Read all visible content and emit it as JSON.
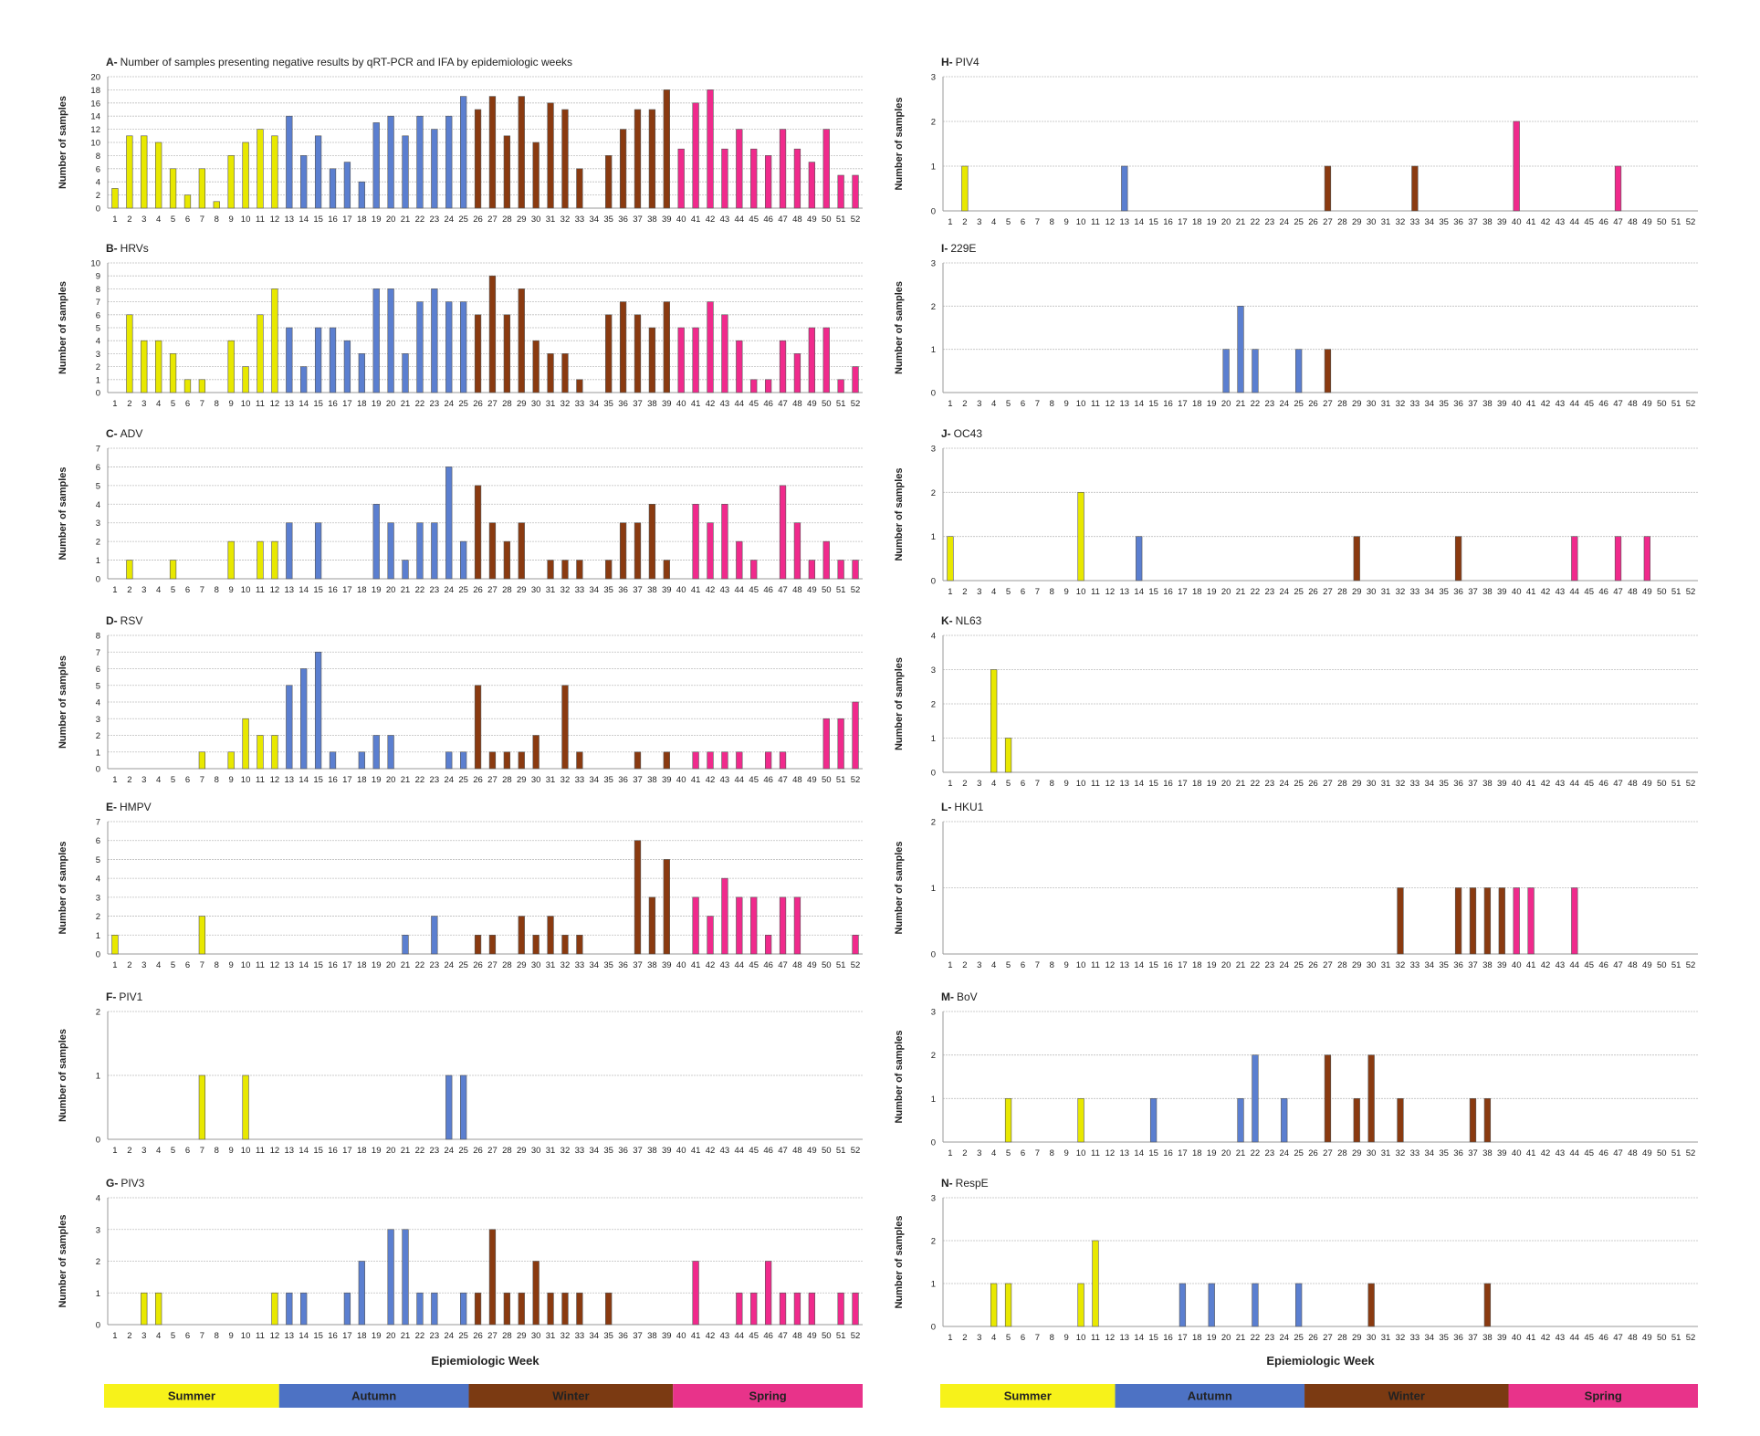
{
  "season_colors": {
    "Summer": "#f7f21a",
    "Autumn": "#4d72c4",
    "Winter": "#7b3a12",
    "Spring": "#e8338a"
  },
  "season_bar_colors": {
    "Summer": "#e8e800",
    "Autumn": "#5b7fd0",
    "Winter": "#8a3a10",
    "Spring": "#f02a8c"
  },
  "season_week_ranges": {
    "Summer": [
      1,
      12
    ],
    "Autumn": [
      13,
      25
    ],
    "Winter": [
      26,
      39
    ],
    "Spring": [
      40,
      52
    ]
  },
  "axis_weeks": {
    "default": 52,
    "N": 52
  },
  "xlabel": "Epiemiologic Week",
  "ylabel": "Number of samples",
  "legend_left": [
    "Summer",
    "Autumn",
    "Winter",
    "Spring"
  ],
  "legend_right": [
    "Summer",
    "Autumn",
    "Winter",
    "Spring"
  ],
  "chart_data": [
    {
      "id": "A",
      "letter": "A-",
      "title": "Number of samples presenting  negative results  by qRT-PCR  and IFA by epidemiologic weeks",
      "type": "bar",
      "ymax": 20,
      "ytick": 2,
      "column": "left",
      "values": {
        "1": 3,
        "2": 11,
        "3": 11,
        "4": 10,
        "5": 6,
        "6": 2,
        "7": 6,
        "8": 1,
        "9": 8,
        "10": 10,
        "11": 12,
        "12": 11,
        "13": 14,
        "14": 8,
        "15": 11,
        "16": 6,
        "17": 7,
        "18": 4,
        "19": 13,
        "20": 14,
        "21": 11,
        "22": 14,
        "23": 12,
        "24": 14,
        "25": 17,
        "26": 15,
        "27": 17,
        "28": 11,
        "29": 17,
        "30": 10,
        "31": 16,
        "32": 15,
        "33": 6,
        "35": 8,
        "36": 12,
        "37": 15,
        "38": 15,
        "39": 18,
        "40": 9,
        "41": 16,
        "42": 18,
        "43": 9,
        "44": 12,
        "45": 9,
        "46": 8,
        "47": 12,
        "48": 9,
        "49": 7,
        "50": 12,
        "51": 5,
        "52": 5
      }
    },
    {
      "id": "B",
      "letter": "B-",
      "title": "HRVs",
      "type": "bar",
      "ymax": 10,
      "ytick": 1,
      "column": "left",
      "values": {
        "2": 6,
        "3": 4,
        "4": 4,
        "5": 3,
        "6": 1,
        "7": 1,
        "9": 4,
        "10": 2,
        "11": 6,
        "12": 8,
        "13": 5,
        "14": 2,
        "15": 5,
        "16": 5,
        "17": 4,
        "18": 3,
        "19": 8,
        "20": 8,
        "21": 3,
        "22": 7,
        "23": 8,
        "24": 7,
        "25": 7,
        "26": 6,
        "27": 9,
        "28": 6,
        "29": 8,
        "30": 4,
        "31": 3,
        "32": 3,
        "33": 1,
        "35": 6,
        "36": 7,
        "37": 6,
        "38": 5,
        "39": 7,
        "40": 5,
        "41": 5,
        "42": 7,
        "43": 6,
        "44": 4,
        "45": 1,
        "46": 1,
        "47": 4,
        "48": 3,
        "49": 5,
        "50": 5,
        "51": 1,
        "52": 2
      }
    },
    {
      "id": "C",
      "letter": "C-",
      "title": "ADV",
      "type": "bar",
      "ymax": 7,
      "ytick": 1,
      "column": "left",
      "values": {
        "2": 1,
        "5": 1,
        "9": 2,
        "11": 2,
        "12": 2,
        "13": 3,
        "15": 3,
        "19": 4,
        "20": 3,
        "21": 1,
        "22": 3,
        "23": 3,
        "24": 6,
        "25": 2,
        "26": 5,
        "27": 3,
        "28": 2,
        "29": 3,
        "31": 1,
        "32": 1,
        "33": 1,
        "35": 1,
        "36": 3,
        "37": 3,
        "38": 4,
        "39": 1,
        "41": 4,
        "42": 3,
        "43": 4,
        "44": 2,
        "45": 1,
        "47": 5,
        "48": 3,
        "49": 1,
        "50": 2,
        "51": 1,
        "52": 1
      }
    },
    {
      "id": "D",
      "letter": "D-",
      "title": "RSV",
      "type": "bar",
      "ymax": 8,
      "ytick": 1,
      "column": "left",
      "values": {
        "7": 1,
        "9": 1,
        "10": 3,
        "11": 2,
        "12": 2,
        "13": 5,
        "14": 6,
        "15": 7,
        "16": 1,
        "18": 1,
        "19": 2,
        "20": 2,
        "24": 1,
        "25": 1,
        "26": 5,
        "27": 1,
        "28": 1,
        "29": 1,
        "30": 2,
        "32": 5,
        "33": 1,
        "37": 1,
        "39": 1,
        "41": 1,
        "42": 1,
        "43": 1,
        "44": 1,
        "46": 1,
        "47": 1,
        "50": 3,
        "51": 3,
        "52": 4
      }
    },
    {
      "id": "E",
      "letter": "E-",
      "title": "HMPV",
      "type": "bar",
      "ymax": 7,
      "ytick": 1,
      "column": "left",
      "values": {
        "1": 1,
        "7": 2,
        "21": 1,
        "23": 2,
        "26": 1,
        "27": 1,
        "29": 2,
        "30": 1,
        "31": 2,
        "32": 1,
        "33": 1,
        "37": 6,
        "38": 3,
        "39": 5,
        "41": 3,
        "42": 2,
        "43": 4,
        "44": 3,
        "45": 3,
        "46": 1,
        "47": 3,
        "48": 3,
        "52": 1
      }
    },
    {
      "id": "F",
      "letter": "F-",
      "title": "PIV1",
      "type": "bar",
      "ymax": 2,
      "ytick": 1,
      "column": "left",
      "values": {
        "7": 1,
        "10": 1,
        "24": 1,
        "25": 1
      }
    },
    {
      "id": "G",
      "letter": "G-",
      "title": "PIV3",
      "type": "bar",
      "ymax": 4,
      "ytick": 1,
      "column": "left",
      "values": {
        "3": 1,
        "4": 1,
        "12": 1,
        "13": 1,
        "14": 1,
        "17": 1,
        "18": 2,
        "20": 3,
        "21": 3,
        "22": 1,
        "23": 1,
        "25": 1,
        "26": 1,
        "27": 3,
        "28": 1,
        "29": 1,
        "30": 2,
        "31": 1,
        "32": 1,
        "33": 1,
        "35": 1,
        "41": 2,
        "44": 1,
        "45": 1,
        "46": 2,
        "47": 1,
        "48": 1,
        "49": 1,
        "51": 1,
        "52": 1
      }
    },
    {
      "id": "H",
      "letter": "H-",
      "title": "PIV4",
      "type": "bar",
      "ymax": 3,
      "ytick": 1,
      "column": "right",
      "values": {
        "2": 1,
        "13": 1,
        "27": 1,
        "33": 1,
        "40": 2,
        "47": 1
      }
    },
    {
      "id": "I",
      "letter": "I-",
      "title": "229E",
      "type": "bar",
      "ymax": 3,
      "ytick": 1,
      "column": "right",
      "values": {
        "20": 1,
        "21": 2,
        "22": 1,
        "25": 1,
        "27": 1
      }
    },
    {
      "id": "J",
      "letter": "J-",
      "title": "OC43",
      "type": "bar",
      "ymax": 3,
      "ytick": 1,
      "column": "right",
      "values": {
        "1": 1,
        "10": 2,
        "14": 1,
        "29": 1,
        "36": 1,
        "44": 1,
        "47": 1,
        "49": 1
      }
    },
    {
      "id": "K",
      "letter": "K-",
      "title": "NL63",
      "type": "bar",
      "ymax": 4,
      "ytick": 1,
      "column": "right",
      "values": {
        "4": 3,
        "5": 1
      }
    },
    {
      "id": "L",
      "letter": "L-",
      "title": "HKU1",
      "type": "bar",
      "ymax": 2,
      "ytick": 1,
      "column": "right",
      "values": {
        "32": 1,
        "36": 1,
        "37": 1,
        "38": 1,
        "39": 1,
        "40": 1,
        "41": 1,
        "44": 1
      }
    },
    {
      "id": "M",
      "letter": "M-",
      "title": "BoV",
      "type": "bar",
      "ymax": 3,
      "ytick": 1,
      "column": "right",
      "values": {
        "5": 1,
        "10": 1,
        "15": 1,
        "21": 1,
        "22": 2,
        "24": 1,
        "27": 2,
        "29": 1,
        "30": 2,
        "32": 1,
        "37": 1,
        "38": 1
      }
    },
    {
      "id": "N",
      "letter": "N-",
      "title": "RespE",
      "type": "bar",
      "ymax": 3,
      "ytick": 1,
      "column": "right",
      "values": {
        "4": 1,
        "5": 1,
        "10": 1,
        "11": 2,
        "17": 1,
        "19": 1,
        "22": 1,
        "25": 1,
        "30": 1,
        "38": 1
      }
    }
  ]
}
